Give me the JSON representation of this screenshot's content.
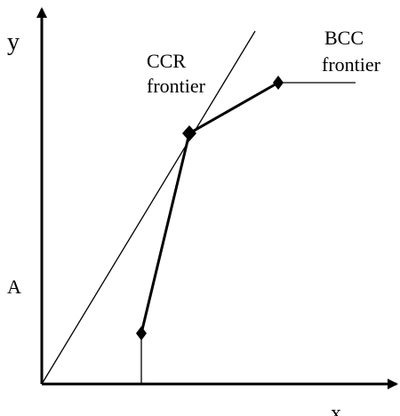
{
  "axes": {
    "y_label": "y",
    "x_label": "x"
  },
  "labels": {
    "ccr": [
      "CCR",
      "frontier"
    ],
    "bcc": [
      "BCC",
      "frontier"
    ],
    "point_a": "A"
  }
}
